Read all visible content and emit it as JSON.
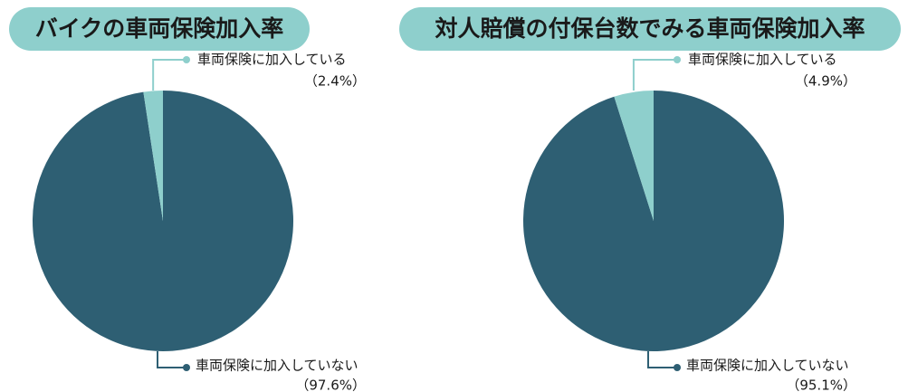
{
  "chart_data": [
    {
      "type": "pie",
      "title": "バイクの車両保険加入率",
      "categories": [
        "車両保険に加入している",
        "車両保険に加入していない"
      ],
      "values": [
        2.4,
        97.6
      ],
      "value_labels": [
        "（2.4%）",
        "（97.6%）"
      ],
      "colors": [
        "#8ecfcc",
        "#2e5f73"
      ]
    },
    {
      "type": "pie",
      "title": "対人賠償の付保台数でみる車両保険加入率",
      "categories": [
        "車両保険に加入している",
        "車両保険に加入していない"
      ],
      "values": [
        4.9,
        95.1
      ],
      "value_labels": [
        "（4.9%）",
        "（95.1%）"
      ],
      "colors": [
        "#8ecfcc",
        "#2e5f73"
      ]
    }
  ]
}
